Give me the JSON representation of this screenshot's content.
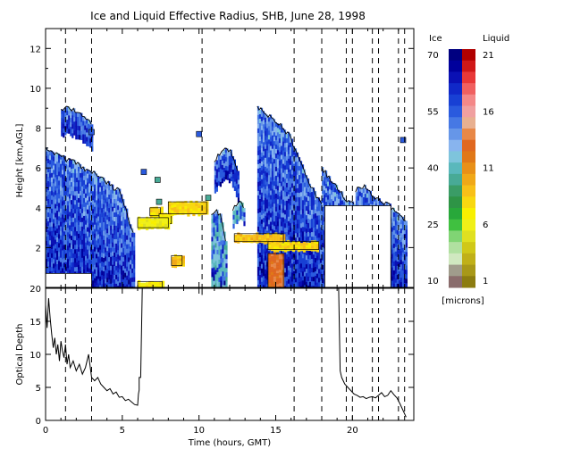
{
  "chart_data": [
    {
      "type": "heatmap",
      "title": "Ice and Liquid Effective Radius, SHB, June 28, 1998",
      "xlabel": "",
      "ylabel": "Height [km,AGL]",
      "xlim": [
        0,
        24
      ],
      "ylim": [
        0,
        13
      ],
      "x_ticks": [
        "0",
        "5",
        "10",
        "15",
        "20"
      ],
      "y_ticks": [
        "2",
        "4",
        "6",
        "8",
        "10",
        "12"
      ],
      "ice_regions": [
        {
          "t0": 0.0,
          "t1": 1.4,
          "top": [
            7.0,
            6.8,
            6.6,
            6.4
          ]
        },
        {
          "t0": 1.4,
          "t1": 3.5,
          "top": [
            6.4,
            6.3,
            6.0,
            5.8,
            5.6
          ]
        },
        {
          "t0": 3.5,
          "t1": 5.8,
          "top": [
            5.6,
            5.3,
            5.0,
            4.8,
            3.6,
            2.5
          ]
        },
        {
          "t0": 1.0,
          "t1": 3.0,
          "top": [
            8.9,
            9.0,
            8.8,
            8.6,
            8.2
          ]
        },
        {
          "t0": 11.0,
          "t1": 12.6,
          "top": [
            6.4,
            6.8,
            7.1,
            6.6,
            5.8
          ]
        },
        {
          "t0": 13.8,
          "t1": 18.0,
          "top": [
            9.0,
            8.8,
            8.4,
            8.1,
            7.6,
            6.6,
            5.6,
            4.8,
            4.2
          ]
        },
        {
          "t0": 18.0,
          "t1": 20.2,
          "top": [
            6.0,
            5.4,
            4.9,
            4.3,
            4.2
          ]
        },
        {
          "t0": 20.2,
          "t1": 23.5,
          "top": [
            4.9,
            5.1,
            4.6,
            4.3,
            4.1,
            3.8,
            3.2
          ]
        },
        {
          "t0": 10.8,
          "t1": 11.8,
          "top": [
            3.6,
            3.8,
            3.5,
            2.0
          ]
        },
        {
          "t0": 12.2,
          "t1": 13.0,
          "top": [
            3.9,
            4.3,
            4.0
          ]
        }
      ],
      "liquid_regions": [
        {
          "t0": 6.8,
          "t1": 7.5,
          "bottom": 3.6,
          "top": 4.0,
          "radius": 8
        },
        {
          "t0": 7.4,
          "t1": 8.2,
          "bottom": 3.2,
          "top": 3.7,
          "radius": 7
        },
        {
          "t0": 8.0,
          "t1": 10.5,
          "bottom": 3.7,
          "top": 4.3,
          "radius": 8
        },
        {
          "t0": 6.0,
          "t1": 8.0,
          "bottom": 3.0,
          "top": 3.5,
          "radius": 6
        },
        {
          "t0": 8.2,
          "t1": 8.9,
          "bottom": 1.1,
          "top": 1.6,
          "radius": 9
        },
        {
          "t0": 6.0,
          "t1": 7.6,
          "bottom": 0.0,
          "top": 0.3,
          "radius": 7
        },
        {
          "t0": 12.3,
          "t1": 15.5,
          "bottom": 2.3,
          "top": 2.7,
          "radius": 9
        },
        {
          "t0": 14.5,
          "t1": 17.8,
          "bottom": 1.9,
          "top": 2.3,
          "radius": 8
        },
        {
          "t0": 14.5,
          "t1": 15.5,
          "bottom": 0.0,
          "top": 1.7,
          "radius": 13
        }
      ],
      "no_data_regions": [
        {
          "t0": 0.0,
          "t1": 3.0,
          "bottom": 0.0,
          "top": 0.7
        },
        {
          "t0": 18.2,
          "t1": 22.5,
          "bottom": 0.0,
          "top": 4.1
        }
      ],
      "small_patches": [
        {
          "t": 3.0,
          "h": 7.8,
          "kind": "ice"
        },
        {
          "t": 6.4,
          "h": 5.8,
          "kind": "ice"
        },
        {
          "t": 7.3,
          "h": 5.4,
          "kind": "teal"
        },
        {
          "t": 7.4,
          "h": 4.3,
          "kind": "teal"
        },
        {
          "t": 10.0,
          "h": 7.7,
          "kind": "ice"
        },
        {
          "t": 10.6,
          "h": 4.5,
          "kind": "teal"
        },
        {
          "t": 23.3,
          "h": 7.4,
          "kind": "ice"
        }
      ],
      "event_lines_hours": [
        1.3,
        3.0,
        10.2,
        16.2,
        18.0,
        19.6,
        20.0,
        21.3,
        21.7,
        23.0,
        23.4
      ],
      "colorbar": {
        "ice_label": "Ice",
        "liquid_label": "Liquid",
        "units": "[microns]",
        "ice_ticks": [
          "70",
          "55",
          "40",
          "25",
          "10"
        ],
        "liquid_ticks": [
          "21",
          "16",
          "11",
          "6",
          "1"
        ],
        "ice_colors": [
          "#000080",
          "#00009c",
          "#0a10b4",
          "#1028c8",
          "#1840d4",
          "#2a5ade",
          "#4678e4",
          "#6696e8",
          "#88b4ee",
          "#7ec4dc",
          "#5ab8bc",
          "#48aa96",
          "#3a9c66",
          "#2e9446",
          "#28a83a",
          "#40c040",
          "#80d474",
          "#b0e0a0",
          "#d0e8c0",
          "#a09c8c",
          "#8a6c6c"
        ],
        "liquid_colors": [
          "#b00000",
          "#d01818",
          "#e83838",
          "#f06060",
          "#f48888",
          "#f0a0a0",
          "#e8b090",
          "#e88848",
          "#e06820",
          "#e07818",
          "#e89018",
          "#f0a818",
          "#f8c018",
          "#f8d810",
          "#f8f000",
          "#f0f018",
          "#e0e020",
          "#d0c818",
          "#c0b018",
          "#a89818",
          "#8c7c10"
        ]
      }
    },
    {
      "type": "line",
      "xlabel": "Time (hours, GMT)",
      "ylabel": "Optical Depth",
      "xlim": [
        0,
        24
      ],
      "ylim": [
        0,
        20
      ],
      "x_ticks": [
        "0",
        "5",
        "10",
        "15",
        "20"
      ],
      "y_ticks": [
        "0",
        "5",
        "10",
        "15",
        "20"
      ],
      "segments": [
        {
          "x": [
            0.0,
            0.1,
            0.2,
            0.3,
            0.4,
            0.5,
            0.6,
            0.7,
            0.8,
            0.9,
            1.0,
            1.1,
            1.2,
            1.3,
            1.4,
            1.5,
            1.6,
            1.8,
            2.0,
            2.2,
            2.4,
            2.6,
            2.8,
            3.0,
            3.2,
            3.4,
            3.6,
            3.8,
            4.0,
            4.2,
            4.4,
            4.6,
            4.8,
            5.0,
            5.2,
            5.4,
            5.6,
            5.8,
            6.0,
            6.05,
            6.1,
            6.1,
            6.2,
            6.3
          ],
          "y": [
            17.5,
            14.0,
            18.5,
            15.5,
            13.0,
            11.0,
            12.5,
            10.0,
            11.5,
            9.0,
            12.0,
            10.5,
            9.5,
            11.5,
            8.5,
            10.0,
            8.0,
            9.0,
            7.5,
            8.5,
            7.0,
            8.0,
            10.0,
            6.5,
            6.0,
            6.5,
            5.5,
            5.0,
            4.5,
            4.8,
            4.0,
            4.3,
            3.5,
            3.6,
            3.0,
            3.2,
            2.8,
            2.4,
            2.3,
            4.0,
            4.6,
            6.5,
            6.5,
            20.0
          ]
        },
        {
          "x": [
            10.2,
            10.2
          ],
          "y": [
            19.0,
            20.0
          ]
        },
        {
          "x": [
            19.1,
            19.2,
            19.3,
            19.5,
            19.7,
            19.9,
            20.1,
            20.3,
            20.5,
            20.7,
            20.9,
            21.1,
            21.3,
            21.5,
            21.7,
            21.9,
            22.1,
            22.3,
            22.5,
            22.7,
            22.9,
            23.1,
            23.3,
            23.5
          ],
          "y": [
            20.0,
            7.5,
            6.5,
            5.5,
            5.0,
            4.5,
            4.0,
            3.8,
            3.5,
            3.6,
            3.3,
            3.5,
            3.6,
            3.4,
            3.8,
            4.2,
            3.6,
            3.8,
            4.5,
            3.9,
            3.4,
            2.5,
            1.5,
            0.5
          ]
        }
      ],
      "event_lines_hours": [
        1.3,
        3.0,
        16.2,
        18.0,
        19.6,
        20.0,
        21.3,
        21.7,
        23.0,
        23.4
      ]
    }
  ]
}
